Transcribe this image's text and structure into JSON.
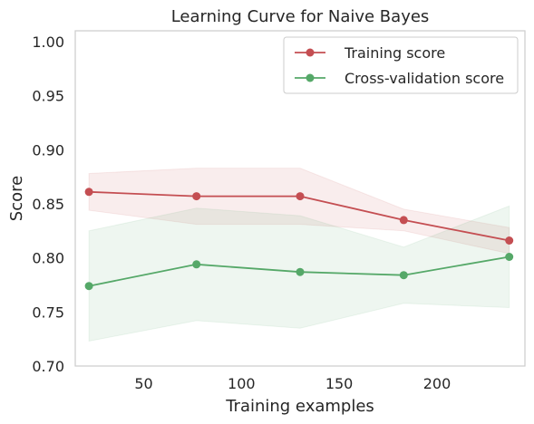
{
  "chart_data": {
    "type": "line",
    "title": "Learning Curve for Naive Bayes",
    "xlabel": "Training examples",
    "ylabel": "Score",
    "xlim": [
      15,
      245
    ],
    "ylim": [
      0.7,
      1.01
    ],
    "xticks": [
      50,
      100,
      150,
      200
    ],
    "yticks": [
      0.7,
      0.75,
      0.8,
      0.85,
      0.9,
      0.95,
      1.0
    ],
    "xtick_labels": [
      "50",
      "100",
      "150",
      "200"
    ],
    "ytick_labels": [
      "0.70",
      "0.75",
      "0.80",
      "0.85",
      "0.90",
      "0.95",
      "1.00"
    ],
    "grid": false,
    "legend_position": "top-right",
    "x": [
      22,
      77,
      130,
      183,
      237
    ],
    "series": [
      {
        "name": "Training score",
        "color": "#c44e52",
        "values": [
          0.861,
          0.857,
          0.857,
          0.835,
          0.816
        ],
        "upper": [
          0.878,
          0.883,
          0.883,
          0.845,
          0.828
        ],
        "lower": [
          0.844,
          0.831,
          0.831,
          0.825,
          0.804
        ]
      },
      {
        "name": "Cross-validation score",
        "color": "#55a868",
        "values": [
          0.774,
          0.794,
          0.787,
          0.784,
          0.801
        ],
        "upper": [
          0.825,
          0.846,
          0.839,
          0.81,
          0.848
        ],
        "lower": [
          0.723,
          0.742,
          0.735,
          0.758,
          0.754
        ]
      }
    ]
  }
}
